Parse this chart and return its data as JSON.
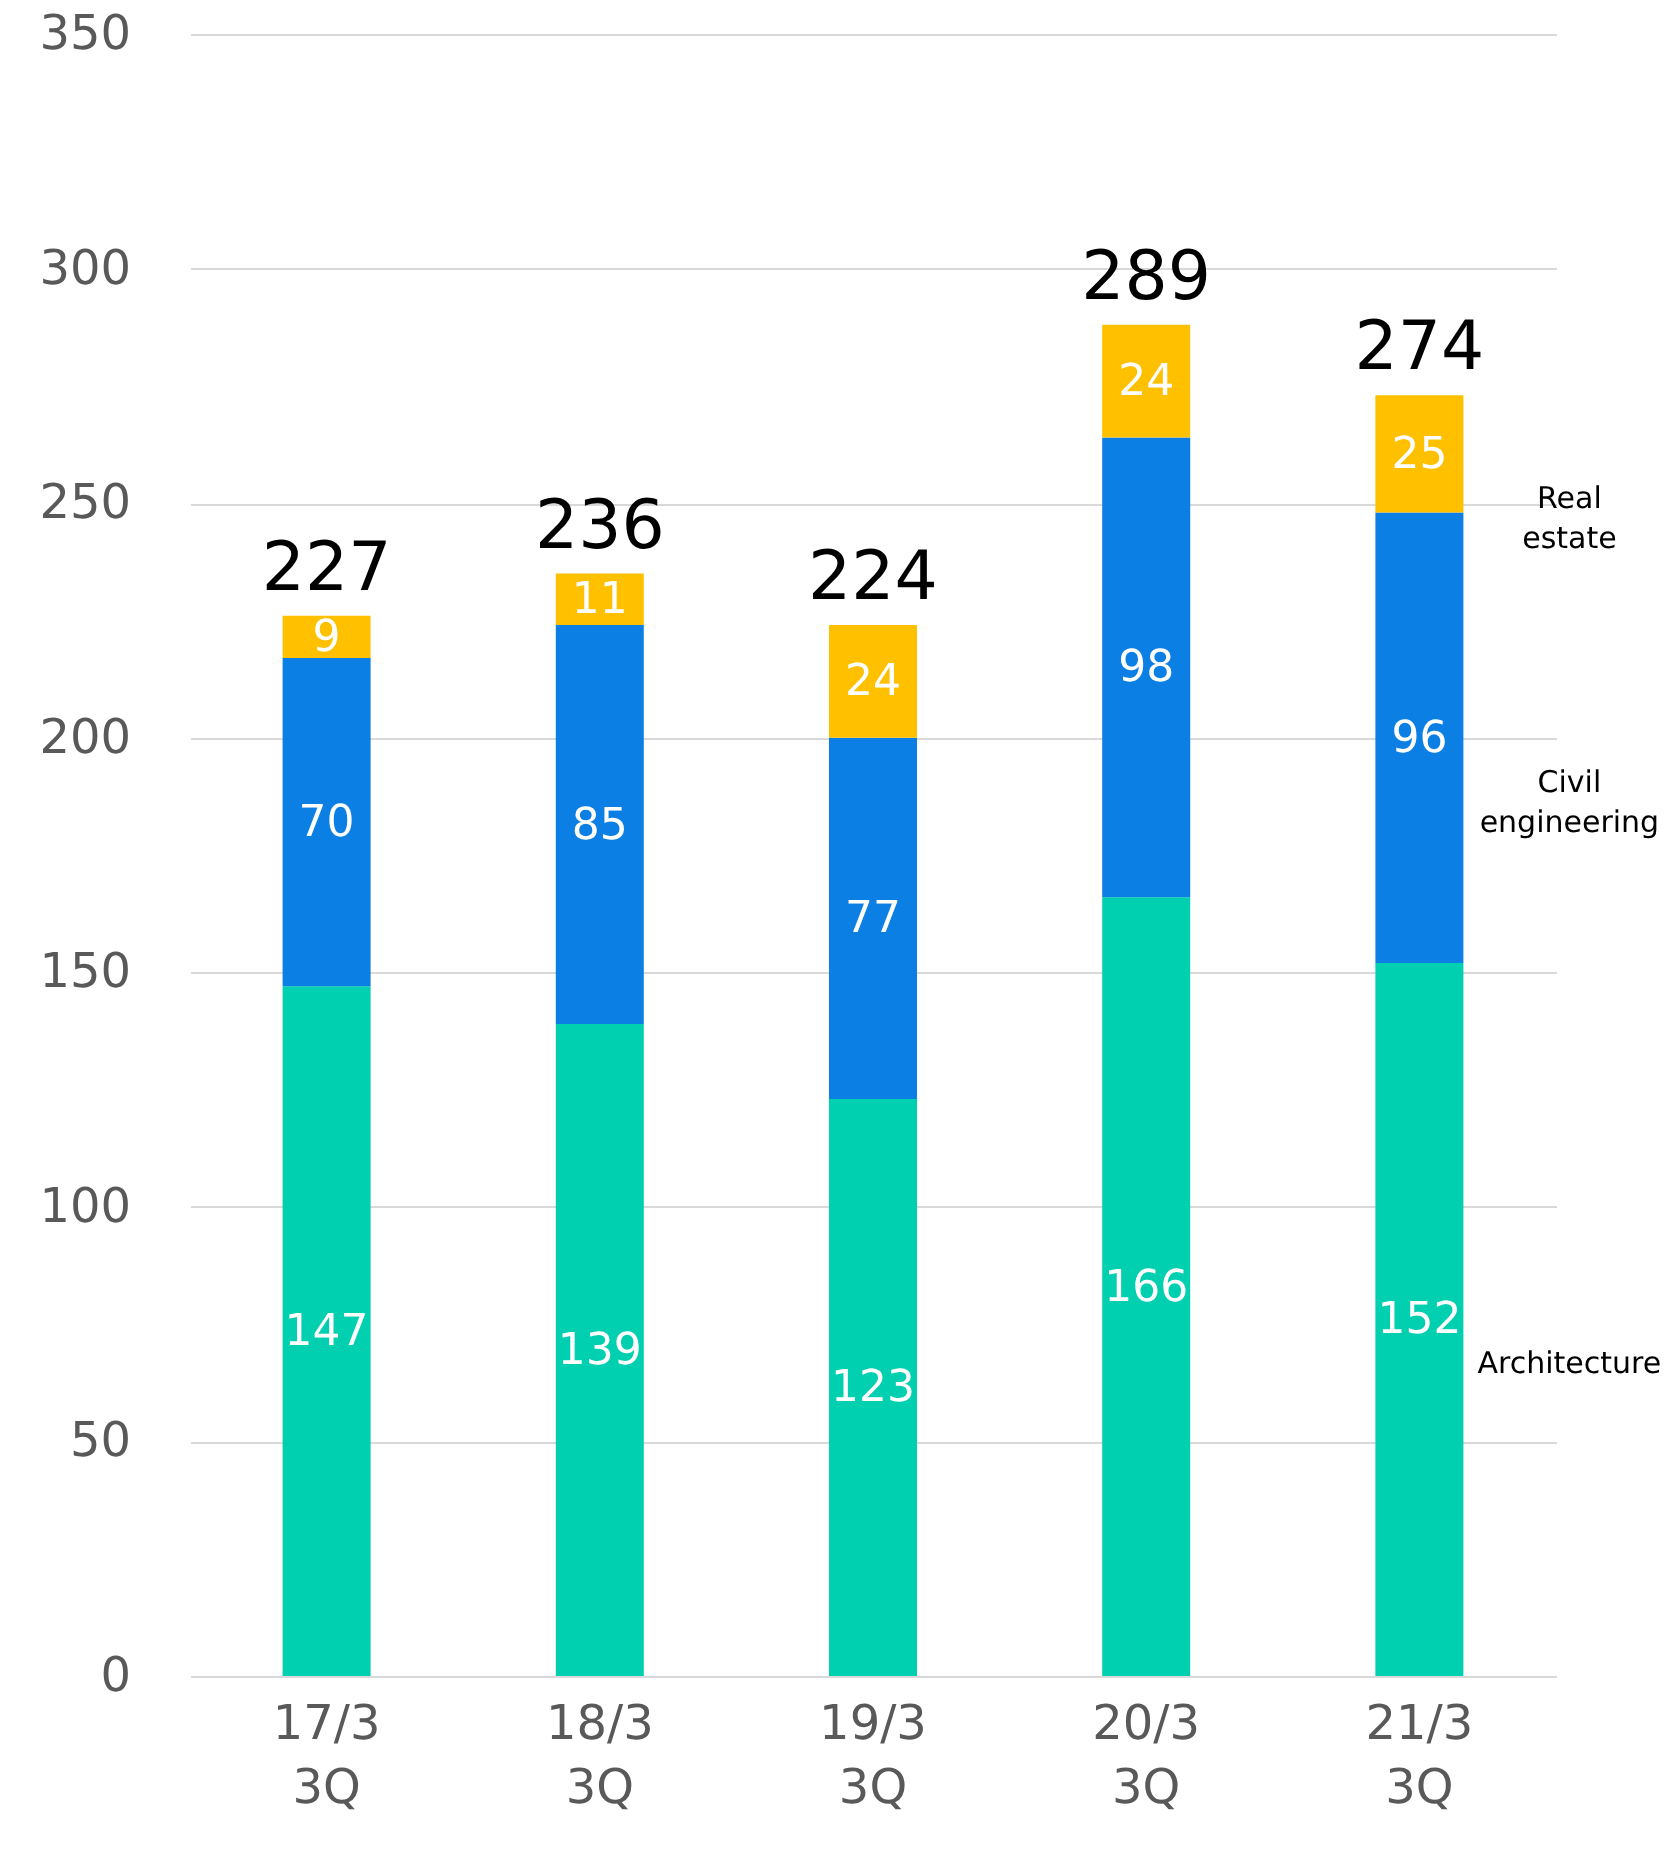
{
  "chart_data": {
    "type": "bar",
    "stacked": true,
    "categories": [
      "17/3\n3Q",
      "18/3\n3Q",
      "19/3\n3Q",
      "20/3\n3Q",
      "21/3\n3Q"
    ],
    "series": [
      {
        "name": "Architecture",
        "color": "#00cfb0",
        "values": [
          147,
          139,
          123,
          166,
          152
        ]
      },
      {
        "name": "Civil engineering",
        "color": "#0b7fe3",
        "values": [
          70,
          85,
          77,
          98,
          96
        ]
      },
      {
        "name": "Real estate",
        "color": "#ffc000",
        "values": [
          9,
          11,
          24,
          24,
          25
        ]
      }
    ],
    "totals": [
      "227",
      "236",
      "224",
      "289",
      "274"
    ],
    "data_labels": true,
    "ylim": [
      0,
      350
    ],
    "yticks": [
      0,
      50,
      100,
      150,
      200,
      250,
      300,
      350
    ],
    "grid": "y"
  }
}
